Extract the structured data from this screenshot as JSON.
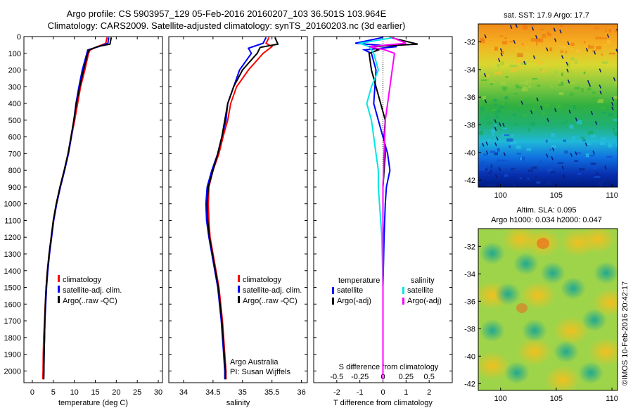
{
  "titles": {
    "line1": "Argo profile: CS 5903957_129 05-Feb-2016 20160207_103 36.501S 103.964E",
    "line2": "Climatology: CARS2009. Satellite-adjusted climatology: synTS_20160203.nc (3d earlier)"
  },
  "colors": {
    "climatology": "#ff0000",
    "satellite": "#0000ff",
    "argo": "#000000",
    "sal_satellite": "#00e5e5",
    "sal_argo": "#ff00ff"
  },
  "chart_data": [
    {
      "type": "line",
      "xlabel": "temperature (deg C)",
      "ylabel": "",
      "xlim": [
        -2,
        31
      ],
      "ylim": [
        2070,
        0
      ],
      "xticks": [
        0,
        5,
        10,
        15,
        20,
        25,
        30
      ],
      "yticks": [
        0,
        100,
        200,
        300,
        400,
        500,
        600,
        700,
        800,
        900,
        1000,
        1100,
        1200,
        1300,
        1400,
        1500,
        1600,
        1700,
        1800,
        1900,
        2000
      ],
      "legend": [
        "climatology",
        "satellite-adj. clim.",
        "Argo(..raw -QC)"
      ],
      "series": [
        {
          "name": "climatology",
          "color": "#ff0000",
          "points": [
            [
              17.8,
              5
            ],
            [
              17.5,
              40
            ],
            [
              15.5,
              60
            ],
            [
              13.8,
              80
            ],
            [
              13.4,
              100
            ],
            [
              12.5,
              200
            ],
            [
              11.5,
              300
            ],
            [
              10.8,
              400
            ],
            [
              10.1,
              500
            ],
            [
              9.3,
              600
            ],
            [
              8.6,
              700
            ],
            [
              7.6,
              800
            ],
            [
              6.6,
              900
            ],
            [
              5.7,
              1000
            ],
            [
              5.0,
              1100
            ],
            [
              4.5,
              1200
            ],
            [
              4.0,
              1300
            ],
            [
              3.6,
              1400
            ],
            [
              3.3,
              1500
            ],
            [
              3.1,
              1600
            ],
            [
              2.9,
              1700
            ],
            [
              2.7,
              1800
            ],
            [
              2.6,
              1900
            ],
            [
              2.55,
              2000
            ],
            [
              2.5,
              2050
            ]
          ]
        },
        {
          "name": "satellite-adj. clim.",
          "color": "#0000ff",
          "points": [
            [
              18.2,
              5
            ],
            [
              18.0,
              40
            ],
            [
              15.8,
              60
            ],
            [
              13.2,
              80
            ],
            [
              13.0,
              100
            ],
            [
              11.9,
              200
            ],
            [
              11.1,
              300
            ],
            [
              10.4,
              400
            ],
            [
              9.9,
              500
            ],
            [
              9.3,
              600
            ],
            [
              8.6,
              700
            ],
            [
              7.7,
              800
            ],
            [
              6.7,
              900
            ],
            [
              5.8,
              1000
            ],
            [
              5.1,
              1100
            ],
            [
              4.6,
              1200
            ],
            [
              4.1,
              1300
            ],
            [
              3.7,
              1400
            ],
            [
              3.4,
              1500
            ],
            [
              3.2,
              1600
            ],
            [
              3.0,
              1700
            ],
            [
              2.9,
              1800
            ],
            [
              2.8,
              1900
            ],
            [
              2.75,
              2000
            ],
            [
              2.7,
              2050
            ]
          ]
        },
        {
          "name": "Argo(..raw -QC)",
          "color": "#000000",
          "points": [
            [
              18.8,
              5
            ],
            [
              18.5,
              45
            ],
            [
              15.5,
              60
            ],
            [
              13.5,
              80
            ],
            [
              13.2,
              100
            ],
            [
              12.2,
              200
            ],
            [
              11.3,
              300
            ],
            [
              10.5,
              400
            ],
            [
              9.9,
              500
            ],
            [
              9.2,
              600
            ],
            [
              8.5,
              700
            ],
            [
              7.6,
              800
            ],
            [
              6.6,
              900
            ],
            [
              5.7,
              1000
            ],
            [
              5.0,
              1100
            ],
            [
              4.5,
              1200
            ],
            [
              4.0,
              1300
            ],
            [
              3.6,
              1400
            ],
            [
              3.3,
              1500
            ],
            [
              3.1,
              1600
            ],
            [
              3.0,
              1700
            ],
            [
              2.9,
              1800
            ],
            [
              2.8,
              1900
            ],
            [
              2.75,
              2000
            ],
            [
              2.7,
              2050
            ]
          ]
        }
      ]
    },
    {
      "type": "line",
      "xlabel": "salinity",
      "ylabel": "",
      "xlim": [
        33.75,
        36.1
      ],
      "ylim": [
        2070,
        0
      ],
      "xticks": [
        34,
        34.5,
        35,
        35.5,
        36
      ],
      "legend": [
        "climatology",
        "satellite-adj. clim.",
        "Argo(..raw -QC)"
      ],
      "annotations": [
        "Argo Australia",
        "PI: Susan Wijffels"
      ],
      "series": [
        {
          "name": "climatology",
          "color": "#ff0000",
          "points": [
            [
              35.45,
              5
            ],
            [
              35.4,
              40
            ],
            [
              35.5,
              60
            ],
            [
              35.35,
              100
            ],
            [
              35.1,
              200
            ],
            [
              34.9,
              300
            ],
            [
              34.8,
              400
            ],
            [
              34.75,
              500
            ],
            [
              34.67,
              600
            ],
            [
              34.6,
              700
            ],
            [
              34.5,
              800
            ],
            [
              34.43,
              900
            ],
            [
              34.42,
              1000
            ],
            [
              34.43,
              1100
            ],
            [
              34.45,
              1200
            ],
            [
              34.5,
              1300
            ],
            [
              34.55,
              1400
            ],
            [
              34.6,
              1500
            ],
            [
              34.63,
              1600
            ],
            [
              34.66,
              1700
            ],
            [
              34.68,
              1800
            ],
            [
              34.7,
              1900
            ],
            [
              34.72,
              2000
            ],
            [
              34.72,
              2050
            ]
          ]
        },
        {
          "name": "satellite-adj. clim.",
          "color": "#0000ff",
          "points": [
            [
              35.4,
              5
            ],
            [
              35.35,
              40
            ],
            [
              35.1,
              70
            ],
            [
              35.15,
              100
            ],
            [
              34.95,
              200
            ],
            [
              34.85,
              300
            ],
            [
              34.75,
              400
            ],
            [
              34.72,
              500
            ],
            [
              34.65,
              600
            ],
            [
              34.58,
              700
            ],
            [
              34.48,
              800
            ],
            [
              34.4,
              900
            ],
            [
              34.38,
              1000
            ],
            [
              34.39,
              1100
            ],
            [
              34.43,
              1200
            ],
            [
              34.48,
              1300
            ],
            [
              34.53,
              1400
            ],
            [
              34.58,
              1500
            ],
            [
              34.61,
              1600
            ],
            [
              34.64,
              1700
            ],
            [
              34.66,
              1800
            ],
            [
              34.68,
              1900
            ],
            [
              34.7,
              2000
            ],
            [
              34.7,
              2050
            ]
          ]
        },
        {
          "name": "Argo(..raw -QC)",
          "color": "#000000",
          "points": [
            [
              35.55,
              5
            ],
            [
              35.6,
              45
            ],
            [
              35.3,
              65
            ],
            [
              35.25,
              100
            ],
            [
              35.0,
              200
            ],
            [
              34.85,
              300
            ],
            [
              34.75,
              400
            ],
            [
              34.7,
              500
            ],
            [
              34.65,
              600
            ],
            [
              34.58,
              700
            ],
            [
              34.5,
              800
            ],
            [
              34.42,
              900
            ],
            [
              34.4,
              1000
            ],
            [
              34.41,
              1100
            ],
            [
              34.44,
              1200
            ],
            [
              34.49,
              1300
            ],
            [
              34.54,
              1400
            ],
            [
              34.59,
              1500
            ],
            [
              34.62,
              1600
            ],
            [
              34.65,
              1700
            ],
            [
              34.67,
              1800
            ],
            [
              34.69,
              1900
            ],
            [
              34.71,
              2000
            ],
            [
              34.71,
              2050
            ]
          ]
        }
      ]
    },
    {
      "type": "line",
      "xlabel": "T difference from climatology",
      "xlabel_top": "S difference from climatology",
      "ylabel": "",
      "xlim": [
        -3,
        3
      ],
      "ylim": [
        2070,
        0
      ],
      "xticks": [
        -2,
        -1,
        0,
        1,
        2
      ],
      "xticks_top_labels": [
        "-0.5",
        "-0.25",
        "0",
        "0.25",
        "0.5"
      ],
      "xticks_top_values": [
        -2,
        -1,
        0,
        1,
        2
      ],
      "legend_title_left": "temperature",
      "legend_title_right": "salinity",
      "legend": [
        "satellite",
        "Argo(-adj)",
        "satellite",
        "Argo(-adj)"
      ],
      "series": [
        {
          "name": "satellite",
          "group": "temperature",
          "color": "#0000ff",
          "points": [
            [
              0,
              5
            ],
            [
              -1.2,
              40
            ],
            [
              0.6,
              60
            ],
            [
              -0.8,
              80
            ],
            [
              -0.5,
              100
            ],
            [
              -0.3,
              200
            ],
            [
              -0.35,
              300
            ],
            [
              -0.4,
              400
            ],
            [
              -0.2,
              500
            ],
            [
              0.0,
              600
            ],
            [
              0.2,
              700
            ],
            [
              0.3,
              800
            ],
            [
              0.15,
              900
            ],
            [
              0.1,
              1000
            ],
            [
              0.05,
              1200
            ],
            [
              0.0,
              1500
            ],
            [
              0.0,
              2050
            ]
          ]
        },
        {
          "name": "Argo(-adj)",
          "group": "temperature",
          "color": "#000000",
          "points": [
            [
              0.3,
              5
            ],
            [
              1.5,
              45
            ],
            [
              -0.5,
              60
            ],
            [
              -0.2,
              80
            ],
            [
              -0.6,
              100
            ],
            [
              -0.5,
              200
            ],
            [
              -0.3,
              300
            ],
            [
              -0.1,
              400
            ],
            [
              0.1,
              500
            ],
            [
              0.05,
              600
            ],
            [
              0.1,
              700
            ],
            [
              0.05,
              800
            ],
            [
              0.0,
              900
            ],
            [
              0.0,
              1100
            ],
            [
              0.0,
              1500
            ],
            [
              0.0,
              2050
            ]
          ]
        },
        {
          "name": "satellite",
          "group": "salinity",
          "color": "#00e5e5",
          "points": [
            [
              0.5,
              5
            ],
            [
              -1.0,
              40
            ],
            [
              -0.6,
              60
            ],
            [
              -0.4,
              100
            ],
            [
              -0.2,
              200
            ],
            [
              -0.5,
              300
            ],
            [
              -0.7,
              400
            ],
            [
              -0.5,
              500
            ],
            [
              -0.4,
              600
            ],
            [
              -0.3,
              700
            ],
            [
              -0.2,
              800
            ],
            [
              -0.2,
              900
            ],
            [
              -0.15,
              1000
            ],
            [
              -0.05,
              1200
            ],
            [
              0.0,
              1500
            ],
            [
              0.0,
              2050
            ]
          ]
        },
        {
          "name": "Argo(-adj)",
          "group": "salinity",
          "color": "#ff00ff",
          "points": [
            [
              0.4,
              5
            ],
            [
              1.0,
              40
            ],
            [
              -0.6,
              60
            ],
            [
              0.1,
              80
            ],
            [
              0.5,
              100
            ],
            [
              0.4,
              200
            ],
            [
              0.3,
              300
            ],
            [
              0.2,
              400
            ],
            [
              0.1,
              500
            ],
            [
              0.05,
              700
            ],
            [
              0.0,
              900
            ],
            [
              0.0,
              1200
            ],
            [
              0.0,
              2050
            ]
          ]
        }
      ]
    },
    {
      "type": "heatmap",
      "title": "sat. SST: 17.9 Argo: 17.7",
      "xlim": [
        98,
        110.5
      ],
      "ylim": [
        -42.5,
        -30.7
      ],
      "xticks": [
        100,
        105,
        110
      ],
      "yticks": [
        -42,
        -40,
        -38,
        -36,
        -34,
        -32
      ]
    },
    {
      "type": "heatmap",
      "title": "Altim. SLA: 0.095",
      "subtitle": "Argo h1000: 0.034 h2000: 0.047",
      "xlim": [
        98,
        110.5
      ],
      "ylim": [
        -42.5,
        -30.7
      ],
      "xticks": [
        100,
        105,
        110
      ],
      "yticks": [
        -42,
        -40,
        -38,
        -36,
        -34,
        -32
      ]
    }
  ],
  "side_caption": "©IMOS 10-Feb-2016 20:42:17"
}
